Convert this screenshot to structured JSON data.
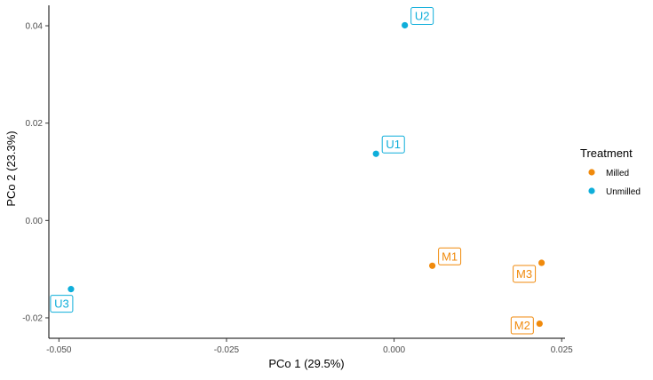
{
  "chart_data": {
    "type": "scatter",
    "title": "",
    "xlabel": "PCo 1 (29.5%)",
    "ylabel": "PCo 2 (23.3%)",
    "xlim": [
      -0.0515,
      0.0255
    ],
    "ylim": [
      -0.0242,
      0.0442
    ],
    "x_ticks": [
      -0.05,
      -0.025,
      0.0,
      0.025
    ],
    "x_tick_labels": [
      "-0.050",
      "-0.025",
      "0.000",
      "0.025"
    ],
    "y_ticks": [
      -0.02,
      0.0,
      0.02,
      0.04
    ],
    "y_tick_labels": [
      "-0.02",
      "0.00",
      "0.02",
      "0.04"
    ],
    "grid": false,
    "legend": {
      "title": "Treatment",
      "placement": "right",
      "entries": [
        {
          "name": "Milled",
          "color": "#F08A0C"
        },
        {
          "name": "Unmilled",
          "color": "#0FAEDA"
        }
      ]
    },
    "series": [
      {
        "name": "Milled",
        "color": "#F08A0C",
        "points": [
          {
            "label": "M1",
            "x": 0.0057,
            "y": -0.0093
          },
          {
            "label": "M2",
            "x": 0.0217,
            "y": -0.0212
          },
          {
            "label": "M3",
            "x": 0.022,
            "y": -0.0087
          }
        ]
      },
      {
        "name": "Unmilled",
        "color": "#0FAEDA",
        "points": [
          {
            "label": "U1",
            "x": -0.0027,
            "y": 0.0137
          },
          {
            "label": "U2",
            "x": 0.0016,
            "y": 0.0401
          },
          {
            "label": "U3",
            "x": -0.0482,
            "y": -0.0141
          }
        ]
      }
    ]
  }
}
